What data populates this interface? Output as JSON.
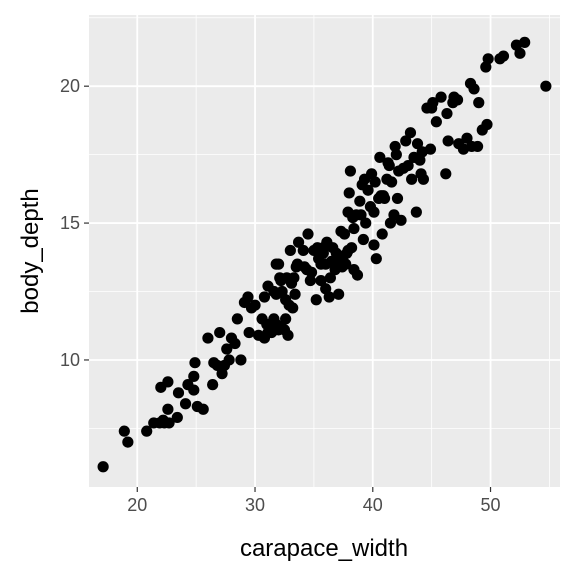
{
  "chart_data": {
    "type": "scatter",
    "title": "",
    "xlabel": "carapace_width",
    "ylabel": "body_depth",
    "xlim": [
      15.9,
      55.9
    ],
    "ylim": [
      5.36,
      22.6
    ],
    "x_ticks": [
      20,
      30,
      40,
      50
    ],
    "y_ticks": [
      10,
      15,
      20
    ],
    "x_tick_labels": [
      "20",
      "30",
      "40",
      "50"
    ],
    "y_tick_labels": [
      "10",
      "15",
      "20"
    ],
    "grid": true,
    "colors": {
      "panel": "#ebebeb",
      "grid_major": "#ffffff",
      "point": "#000000",
      "tick_text": "#4d4d4d",
      "axis_title": "#000000"
    },
    "series": [
      {
        "points": [
          [
            17.1,
            6.1
          ],
          [
            18.9,
            7.4
          ],
          [
            19.2,
            7.0
          ],
          [
            20.8,
            7.4
          ],
          [
            21.4,
            7.7
          ],
          [
            21.9,
            7.7
          ],
          [
            22.2,
            7.8
          ],
          [
            22.3,
            7.7
          ],
          [
            22.7,
            7.7
          ],
          [
            22.6,
            8.2
          ],
          [
            23.5,
            8.8
          ],
          [
            24.1,
            8.4
          ],
          [
            24.8,
            8.9
          ],
          [
            25.1,
            8.3
          ],
          [
            25.6,
            8.2
          ],
          [
            22.0,
            9.0
          ],
          [
            22.6,
            9.2
          ],
          [
            24.3,
            9.1
          ],
          [
            24.8,
            9.4
          ],
          [
            24.9,
            9.9
          ],
          [
            26.0,
            10.8
          ],
          [
            26.4,
            9.1
          ],
          [
            26.8,
            9.8
          ],
          [
            27.2,
            9.5
          ],
          [
            27.4,
            9.8
          ],
          [
            27.8,
            10.0
          ],
          [
            27.0,
            11.0
          ],
          [
            28.0,
            10.8
          ],
          [
            28.5,
            11.5
          ],
          [
            28.8,
            10.0
          ],
          [
            29.1,
            12.1
          ],
          [
            29.5,
            11.0
          ],
          [
            29.7,
            11.9
          ],
          [
            30.0,
            12.0
          ],
          [
            30.3,
            10.9
          ],
          [
            31.1,
            11.0
          ],
          [
            30.8,
            12.3
          ],
          [
            31.6,
            11.5
          ],
          [
            31.8,
            11.3
          ],
          [
            31.1,
            12.7
          ],
          [
            31.6,
            12.5
          ],
          [
            32.1,
            13.0
          ],
          [
            32.2,
            12.9
          ],
          [
            32.3,
            12.5
          ],
          [
            32.6,
            12.2
          ],
          [
            32.0,
            13.5
          ],
          [
            31.8,
            13.5
          ],
          [
            32.7,
            13.0
          ],
          [
            33.1,
            12.8
          ],
          [
            33.2,
            11.9
          ],
          [
            32.9,
            12.0
          ],
          [
            32.6,
            11.5
          ],
          [
            32.2,
            11.2
          ],
          [
            32.8,
            10.9
          ],
          [
            32.5,
            11.1
          ],
          [
            32.0,
            11.1
          ],
          [
            31.4,
            11.0
          ],
          [
            30.8,
            10.8
          ],
          [
            31.0,
            11.3
          ],
          [
            33.0,
            14.0
          ],
          [
            33.3,
            13.0
          ],
          [
            33.4,
            12.4
          ],
          [
            33.6,
            13.5
          ],
          [
            34.1,
            14.0
          ],
          [
            34.4,
            13.3
          ],
          [
            34.7,
            12.9
          ],
          [
            35.0,
            14.0
          ],
          [
            35.2,
            12.2
          ],
          [
            35.6,
            13.5
          ],
          [
            35.8,
            14.1
          ],
          [
            36.0,
            13.5
          ],
          [
            36.1,
            14.3
          ],
          [
            35.6,
            12.9
          ],
          [
            36.4,
            13.0
          ],
          [
            36.6,
            14.1
          ],
          [
            36.8,
            13.3
          ],
          [
            37.0,
            13.8
          ],
          [
            37.2,
            13.6
          ],
          [
            37.5,
            13.8
          ],
          [
            37.7,
            13.5
          ],
          [
            37.9,
            14.0
          ],
          [
            38.2,
            14.1
          ],
          [
            38.4,
            13.3
          ],
          [
            37.6,
            14.6
          ],
          [
            37.9,
            15.4
          ],
          [
            38.0,
            16.1
          ],
          [
            38.4,
            14.8
          ],
          [
            38.6,
            15.3
          ],
          [
            38.9,
            15.8
          ],
          [
            39.1,
            16.4
          ],
          [
            39.2,
            14.4
          ],
          [
            39.4,
            15.0
          ],
          [
            39.6,
            16.2
          ],
          [
            39.9,
            16.8
          ],
          [
            40.1,
            15.4
          ],
          [
            40.1,
            14.2
          ],
          [
            40.3,
            13.7
          ],
          [
            40.5,
            15.9
          ],
          [
            40.7,
            16.0
          ],
          [
            40.8,
            14.6
          ],
          [
            41.0,
            15.9
          ],
          [
            41.2,
            16.6
          ],
          [
            41.3,
            17.2
          ],
          [
            41.6,
            16.5
          ],
          [
            41.8,
            15.3
          ],
          [
            42.2,
            16.9
          ],
          [
            42.4,
            15.1
          ],
          [
            42.8,
            18.0
          ],
          [
            43.0,
            17.1
          ],
          [
            43.3,
            16.6
          ],
          [
            43.5,
            17.4
          ],
          [
            43.8,
            17.9
          ],
          [
            43.2,
            18.3
          ],
          [
            44.0,
            17.3
          ],
          [
            44.2,
            17.6
          ],
          [
            44.3,
            16.6
          ],
          [
            44.6,
            19.2
          ],
          [
            45.0,
            19.2
          ],
          [
            45.4,
            18.7
          ],
          [
            45.8,
            19.6
          ],
          [
            46.2,
            16.8
          ],
          [
            46.4,
            18.0
          ],
          [
            46.8,
            19.4
          ],
          [
            46.9,
            19.6
          ],
          [
            47.2,
            19.5
          ],
          [
            47.3,
            17.9
          ],
          [
            48.0,
            18.1
          ],
          [
            48.3,
            20.1
          ],
          [
            48.6,
            19.9
          ],
          [
            48.4,
            17.8
          ],
          [
            48.9,
            17.8
          ],
          [
            49.3,
            18.4
          ],
          [
            49.7,
            18.6
          ],
          [
            49.6,
            20.7
          ],
          [
            49.8,
            21.0
          ],
          [
            51.1,
            21.1
          ],
          [
            52.2,
            21.5
          ],
          [
            52.5,
            21.2
          ],
          [
            52.9,
            21.6
          ],
          [
            54.7,
            20.0
          ],
          [
            36.0,
            12.6
          ],
          [
            34.8,
            13.2
          ],
          [
            35.8,
            13.9
          ],
          [
            37.1,
            12.4
          ],
          [
            36.3,
            12.3
          ],
          [
            38.7,
            13.1
          ],
          [
            39.3,
            16.6
          ],
          [
            42.1,
            15.9
          ],
          [
            41.5,
            15.0
          ],
          [
            43.7,
            15.4
          ],
          [
            44.1,
            16.8
          ],
          [
            45.1,
            19.4
          ],
          [
            40.6,
            17.4
          ],
          [
            41.9,
            17.8
          ],
          [
            41.4,
            17.1
          ],
          [
            30.6,
            11.5
          ],
          [
            29.4,
            12.3
          ],
          [
            33.7,
            14.3
          ],
          [
            34.5,
            14.6
          ],
          [
            35.4,
            13.7
          ],
          [
            36.9,
            13.9
          ],
          [
            38.1,
            16.9
          ],
          [
            39.8,
            15.6
          ],
          [
            40.9,
            16.0
          ],
          [
            42.0,
            17.5
          ],
          [
            44.9,
            17.7
          ],
          [
            46.3,
            19.0
          ],
          [
            47.7,
            17.7
          ],
          [
            49.0,
            19.4
          ],
          [
            50.8,
            21.0
          ],
          [
            37.3,
            14.7
          ],
          [
            38.3,
            15.2
          ],
          [
            39.0,
            15.3
          ],
          [
            35.3,
            14.1
          ],
          [
            34.2,
            13.4
          ],
          [
            33.5,
            13.4
          ],
          [
            31.8,
            12.4
          ],
          [
            28.3,
            10.6
          ],
          [
            27.6,
            10.4
          ],
          [
            26.5,
            9.9
          ],
          [
            23.4,
            7.9
          ],
          [
            37.4,
            13.4
          ],
          [
            36.5,
            13.6
          ],
          [
            37.8,
            13.9
          ],
          [
            40.2,
            16.5
          ],
          [
            42.6,
            17.0
          ]
        ]
      }
    ]
  }
}
